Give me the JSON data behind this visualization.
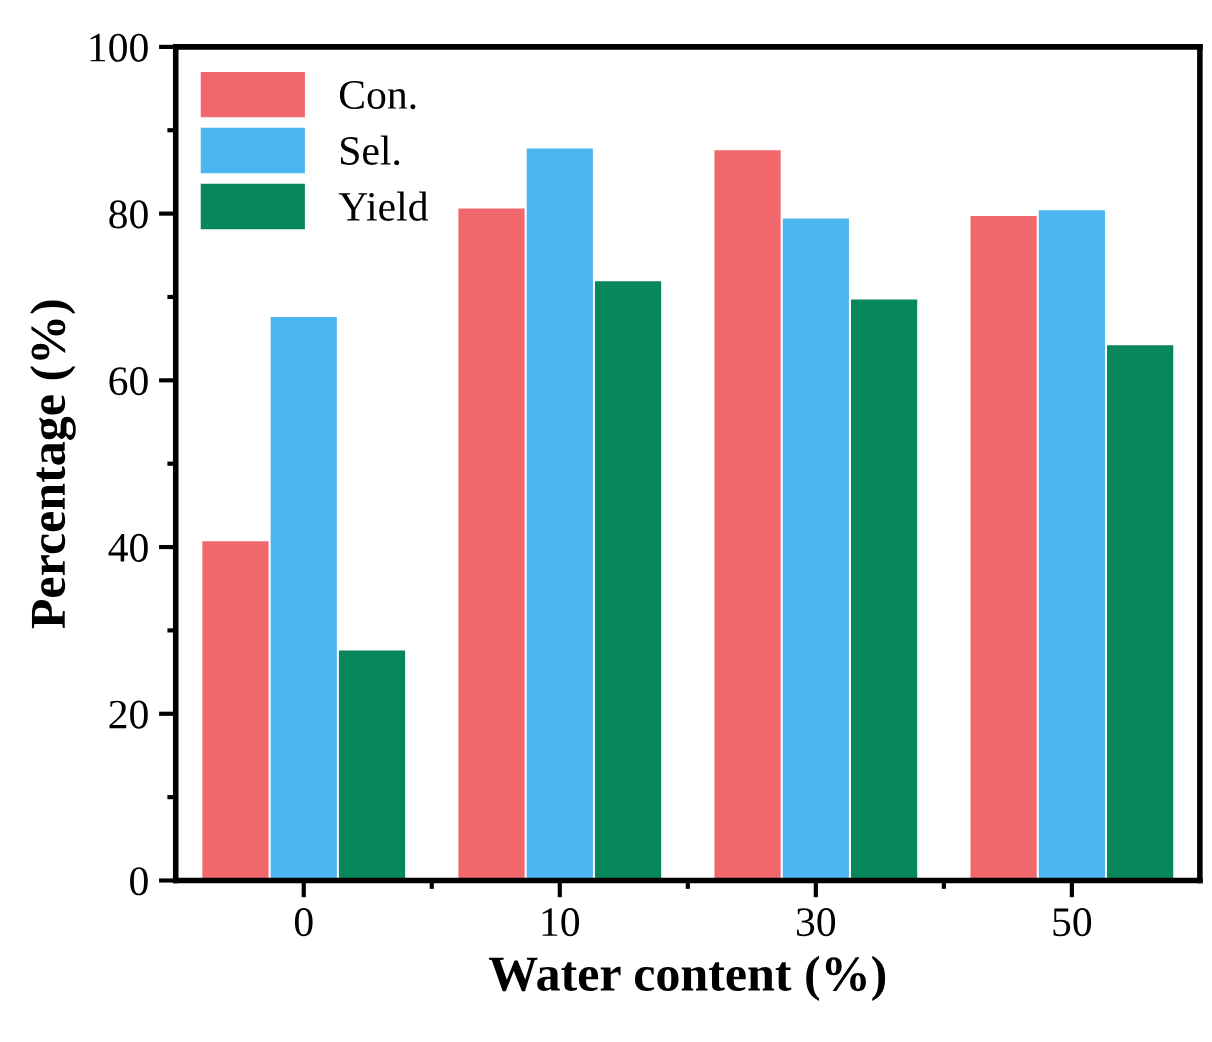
{
  "chart_data": {
    "type": "bar",
    "xlabel": "Water content (%)",
    "ylabel": "Percentage (%)",
    "categories": [
      "0",
      "10",
      "30",
      "50"
    ],
    "series": [
      {
        "name": "Con.",
        "color": "#f0686c",
        "values": [
          40.7,
          80.6,
          87.6,
          79.7
        ]
      },
      {
        "name": "Sel.",
        "color": "#4cb6ee",
        "values": [
          67.6,
          87.8,
          79.4,
          80.4
        ]
      },
      {
        "name": "Yield",
        "color": "#08875a",
        "values": [
          27.6,
          71.9,
          69.7,
          64.2
        ]
      }
    ],
    "ylim": [
      0,
      100
    ],
    "yticks": [
      0,
      20,
      40,
      60,
      80,
      100
    ],
    "grid": false,
    "legend": "top left"
  }
}
